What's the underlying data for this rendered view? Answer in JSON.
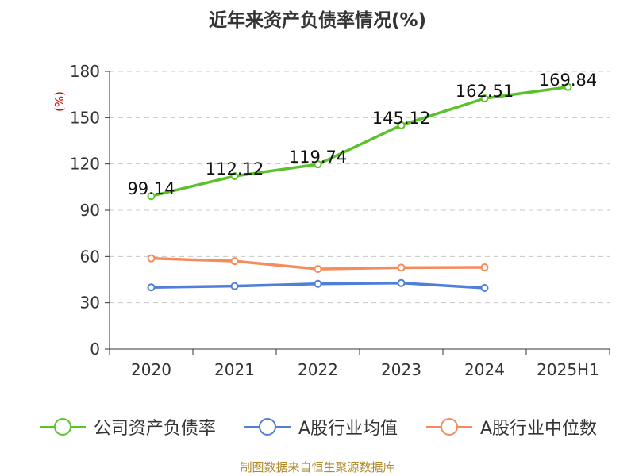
{
  "chart_data": {
    "type": "line",
    "title": "近年来资产负债率情况(%)",
    "ylabel": "(%)",
    "xlabel": "",
    "categories": [
      "2020",
      "2021",
      "2022",
      "2023",
      "2024",
      "2025H1"
    ],
    "ylim": [
      0,
      180
    ],
    "yticks": [
      0,
      30,
      60,
      90,
      120,
      150,
      180
    ],
    "grid": true,
    "legend_position": "bottom",
    "series": [
      {
        "name": "公司资产负债率",
        "color": "#5cc22b",
        "values": [
          99.14,
          112.12,
          119.74,
          145.12,
          162.51,
          169.84
        ],
        "labels": [
          "99.14",
          "112.12",
          "119.74",
          "145.12",
          "162.51",
          "169.84"
        ]
      },
      {
        "name": "A股行业均值",
        "color": "#4f7fd9",
        "values": [
          40.0,
          40.8,
          42.3,
          42.8,
          39.6,
          null
        ]
      },
      {
        "name": "A股行业中位数",
        "color": "#f68c5b",
        "values": [
          58.8,
          57.0,
          51.9,
          52.8,
          53.0,
          null
        ]
      }
    ]
  },
  "source": "制图数据来自恒生聚源数据库"
}
